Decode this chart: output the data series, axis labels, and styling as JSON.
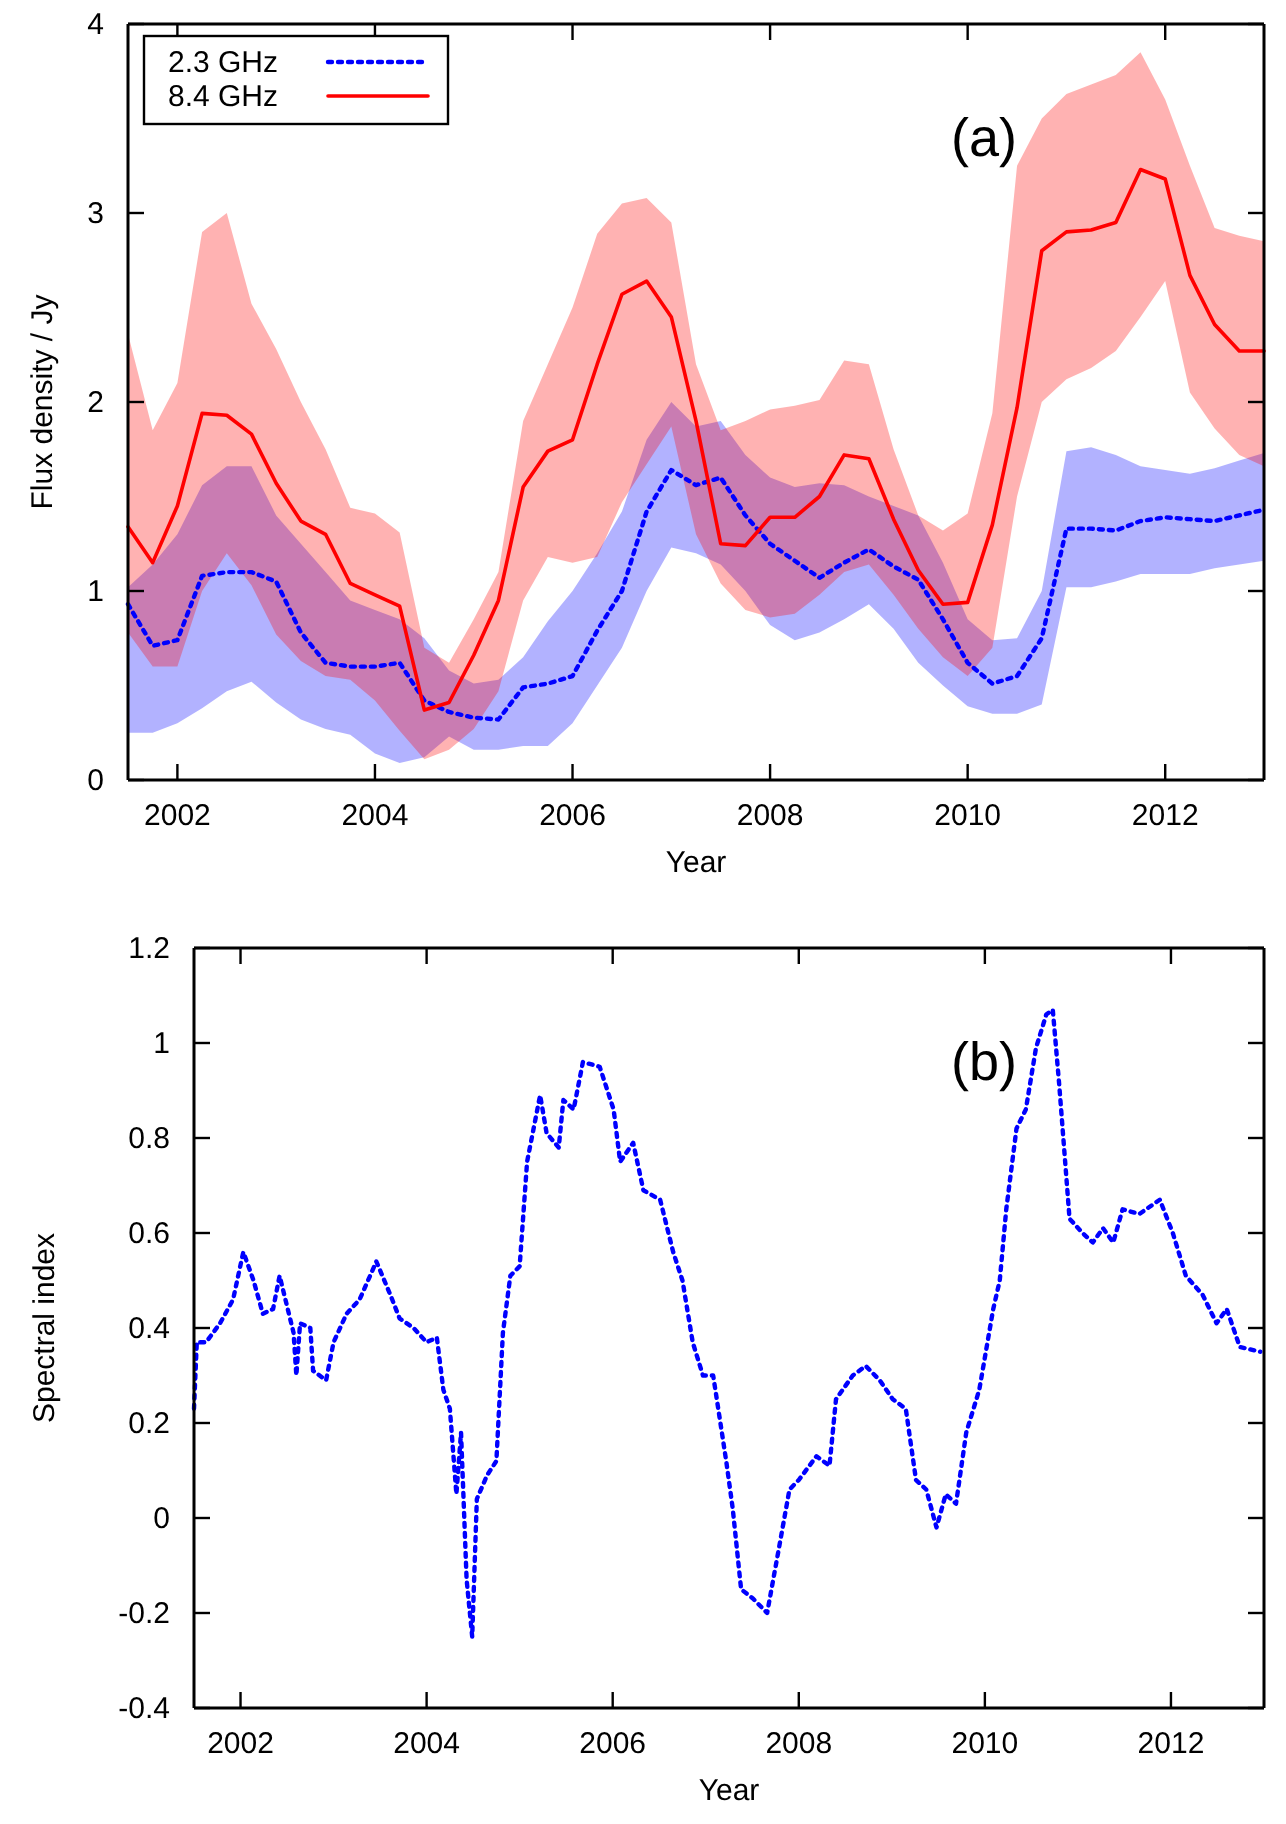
{
  "chart_data": [
    {
      "type": "line",
      "xlabel": "Year",
      "ylabel": "Flux density / Jy",
      "annotations": [
        "(a)"
      ],
      "legend": "top left",
      "x": [
        2001.5,
        2001.75,
        2002.0,
        2002.25,
        2002.5,
        2002.75,
        2003.0,
        2003.25,
        2003.5,
        2003.75,
        2004.0,
        2004.25,
        2004.5,
        2004.75,
        2005.0,
        2005.25,
        2005.5,
        2005.75,
        2006.0,
        2006.25,
        2006.5,
        2006.75,
        2007.0,
        2007.25,
        2007.5,
        2007.75,
        2008.0,
        2008.25,
        2008.5,
        2008.75,
        2009.0,
        2009.25,
        2009.5,
        2009.75,
        2010.0,
        2010.25,
        2010.5,
        2010.75,
        2011.0,
        2011.25,
        2011.5,
        2011.75,
        2012.0,
        2012.25,
        2012.5,
        2012.75,
        2013.0
      ],
      "xlim": [
        2001.5,
        2013
      ],
      "xticks": [
        2002,
        2004,
        2006,
        2008,
        2010,
        2012
      ],
      "ylim": [
        0,
        4
      ],
      "yticks": [
        0,
        1,
        2,
        3,
        4
      ],
      "series": [
        {
          "name": "2.3 GHz",
          "color": "#0000ff",
          "line_style": "dotted",
          "values": [
            0.93,
            0.71,
            0.74,
            1.08,
            1.1,
            1.1,
            1.05,
            0.78,
            0.62,
            0.6,
            0.6,
            0.62,
            0.42,
            0.36,
            0.33,
            0.32,
            0.49,
            0.51,
            0.55,
            0.79,
            1.0,
            1.42,
            1.64,
            1.56,
            1.6,
            1.4,
            1.25,
            1.16,
            1.07,
            1.15,
            1.22,
            1.13,
            1.06,
            0.85,
            0.62,
            0.51,
            0.55,
            0.75,
            1.33,
            1.33,
            1.32,
            1.37,
            1.39,
            1.38,
            1.37,
            1.4,
            1.43
          ],
          "lower": [
            0.25,
            0.25,
            0.3,
            0.38,
            0.47,
            0.52,
            0.41,
            0.32,
            0.27,
            0.24,
            0.14,
            0.09,
            0.12,
            0.23,
            0.16,
            0.16,
            0.18,
            0.18,
            0.3,
            0.5,
            0.7,
            1.0,
            1.23,
            1.2,
            1.14,
            1.0,
            0.82,
            0.74,
            0.78,
            0.85,
            0.93,
            0.8,
            0.62,
            0.5,
            0.39,
            0.35,
            0.35,
            0.4,
            1.02,
            1.02,
            1.05,
            1.09,
            1.09,
            1.09,
            1.12,
            1.14,
            1.16
          ],
          "upper": [
            1.02,
            1.14,
            1.3,
            1.56,
            1.66,
            1.66,
            1.4,
            1.25,
            1.1,
            0.95,
            0.9,
            0.85,
            0.75,
            0.58,
            0.51,
            0.53,
            0.65,
            0.84,
            1.0,
            1.2,
            1.42,
            1.8,
            2.0,
            1.87,
            1.9,
            1.72,
            1.6,
            1.55,
            1.57,
            1.56,
            1.5,
            1.45,
            1.4,
            1.15,
            0.85,
            0.74,
            0.75,
            1.0,
            1.74,
            1.76,
            1.72,
            1.66,
            1.64,
            1.62,
            1.65,
            1.69,
            1.73
          ]
        },
        {
          "name": "8.4 GHz",
          "color": "#ff0000",
          "line_style": "solid",
          "values": [
            1.34,
            1.15,
            1.45,
            1.94,
            1.93,
            1.83,
            1.57,
            1.37,
            1.3,
            1.04,
            0.98,
            0.92,
            0.37,
            0.41,
            0.66,
            0.95,
            1.55,
            1.74,
            1.8,
            2.2,
            2.57,
            2.64,
            2.45,
            1.9,
            1.25,
            1.24,
            1.39,
            1.39,
            1.5,
            1.72,
            1.7,
            1.38,
            1.11,
            0.93,
            0.94,
            1.35,
            1.97,
            2.8,
            2.9,
            2.91,
            2.95,
            3.23,
            3.18,
            2.67,
            2.41,
            2.27,
            2.27
          ],
          "lower": [
            0.78,
            0.6,
            0.6,
            1.0,
            1.2,
            1.03,
            0.77,
            0.63,
            0.55,
            0.53,
            0.42,
            0.26,
            0.11,
            0.16,
            0.27,
            0.47,
            0.95,
            1.18,
            1.15,
            1.18,
            1.47,
            1.67,
            1.87,
            1.3,
            1.04,
            0.9,
            0.86,
            0.88,
            0.98,
            1.1,
            1.14,
            0.98,
            0.8,
            0.65,
            0.55,
            0.7,
            1.5,
            2.0,
            2.12,
            2.18,
            2.27,
            2.45,
            2.64,
            2.05,
            1.86,
            1.72,
            1.66
          ],
          "upper": [
            2.36,
            1.85,
            2.1,
            2.9,
            3.0,
            2.52,
            2.28,
            2.0,
            1.75,
            1.44,
            1.41,
            1.31,
            0.7,
            0.62,
            0.85,
            1.1,
            1.9,
            2.2,
            2.5,
            2.89,
            3.05,
            3.08,
            2.95,
            2.2,
            1.85,
            1.9,
            1.96,
            1.98,
            2.01,
            2.22,
            2.2,
            1.75,
            1.4,
            1.32,
            1.41,
            1.94,
            3.25,
            3.5,
            3.63,
            3.68,
            3.73,
            3.85,
            3.6,
            3.25,
            2.92,
            2.88,
            2.85
          ]
        }
      ]
    },
    {
      "type": "line",
      "xlabel": "Year",
      "ylabel": "Spectral index",
      "annotations": [
        "(b)"
      ],
      "xlim": [
        2001.5,
        2013
      ],
      "xticks": [
        2002,
        2004,
        2006,
        2008,
        2010,
        2012
      ],
      "ylim": [
        -0.4,
        1.2
      ],
      "yticks": [
        -0.4,
        -0.2,
        0,
        0.2,
        0.4,
        0.6,
        0.8,
        1,
        1.2
      ],
      "series": [
        {
          "color": "#0000ff",
          "line_style": "dotted",
          "x": [
            2001.5,
            2001.53,
            2001.63,
            2001.78,
            2001.92,
            2002.03,
            2002.14,
            2002.24,
            2002.35,
            2002.42,
            2002.57,
            2002.6,
            2002.64,
            2002.75,
            2002.78,
            2002.92,
            2003.0,
            2003.14,
            2003.28,
            2003.46,
            2003.61,
            2003.71,
            2003.86,
            2004.0,
            2004.11,
            2004.18,
            2004.25,
            2004.32,
            2004.37,
            2004.43,
            2004.49,
            2004.54,
            2004.65,
            2004.75,
            2004.82,
            2004.9,
            2005.0,
            2005.08,
            2005.22,
            2005.29,
            2005.42,
            2005.47,
            2005.58,
            2005.68,
            2005.86,
            2006.01,
            2006.08,
            2006.22,
            2006.33,
            2006.51,
            2006.65,
            2006.75,
            2006.86,
            2006.97,
            2007.08,
            2007.22,
            2007.29,
            2007.38,
            2007.51,
            2007.66,
            2007.79,
            2007.9,
            2008.0,
            2008.19,
            2008.33,
            2008.4,
            2008.58,
            2008.72,
            2008.87,
            2009.01,
            2009.15,
            2009.26,
            2009.37,
            2009.48,
            2009.58,
            2009.69,
            2009.8,
            2009.94,
            2010.09,
            2010.16,
            2010.23,
            2010.34,
            2010.44,
            2010.55,
            2010.66,
            2010.73,
            2010.8,
            2010.91,
            2011.05,
            2011.16,
            2011.27,
            2011.38,
            2011.48,
            2011.66,
            2011.88,
            2012.02,
            2012.16,
            2012.34,
            2012.49,
            2012.6,
            2012.74,
            2012.96
          ],
          "values": [
            0.23,
            0.37,
            0.37,
            0.41,
            0.46,
            0.56,
            0.5,
            0.43,
            0.44,
            0.51,
            0.39,
            0.3,
            0.41,
            0.4,
            0.31,
            0.29,
            0.37,
            0.43,
            0.46,
            0.54,
            0.47,
            0.42,
            0.4,
            0.37,
            0.38,
            0.27,
            0.23,
            0.05,
            0.18,
            -0.13,
            -0.25,
            0.04,
            0.09,
            0.12,
            0.39,
            0.51,
            0.53,
            0.75,
            0.89,
            0.81,
            0.78,
            0.88,
            0.86,
            0.96,
            0.95,
            0.86,
            0.75,
            0.79,
            0.69,
            0.67,
            0.56,
            0.5,
            0.37,
            0.3,
            0.3,
            0.12,
            0.02,
            -0.15,
            -0.17,
            -0.2,
            -0.06,
            0.06,
            0.08,
            0.13,
            0.11,
            0.25,
            0.3,
            0.32,
            0.29,
            0.25,
            0.23,
            0.08,
            0.06,
            -0.02,
            0.05,
            0.03,
            0.18,
            0.27,
            0.44,
            0.5,
            0.65,
            0.82,
            0.86,
            0.99,
            1.06,
            1.07,
            0.91,
            0.63,
            0.6,
            0.58,
            0.61,
            0.58,
            0.65,
            0.64,
            0.67,
            0.6,
            0.51,
            0.47,
            0.41,
            0.44,
            0.36,
            0.35
          ]
        }
      ]
    }
  ]
}
